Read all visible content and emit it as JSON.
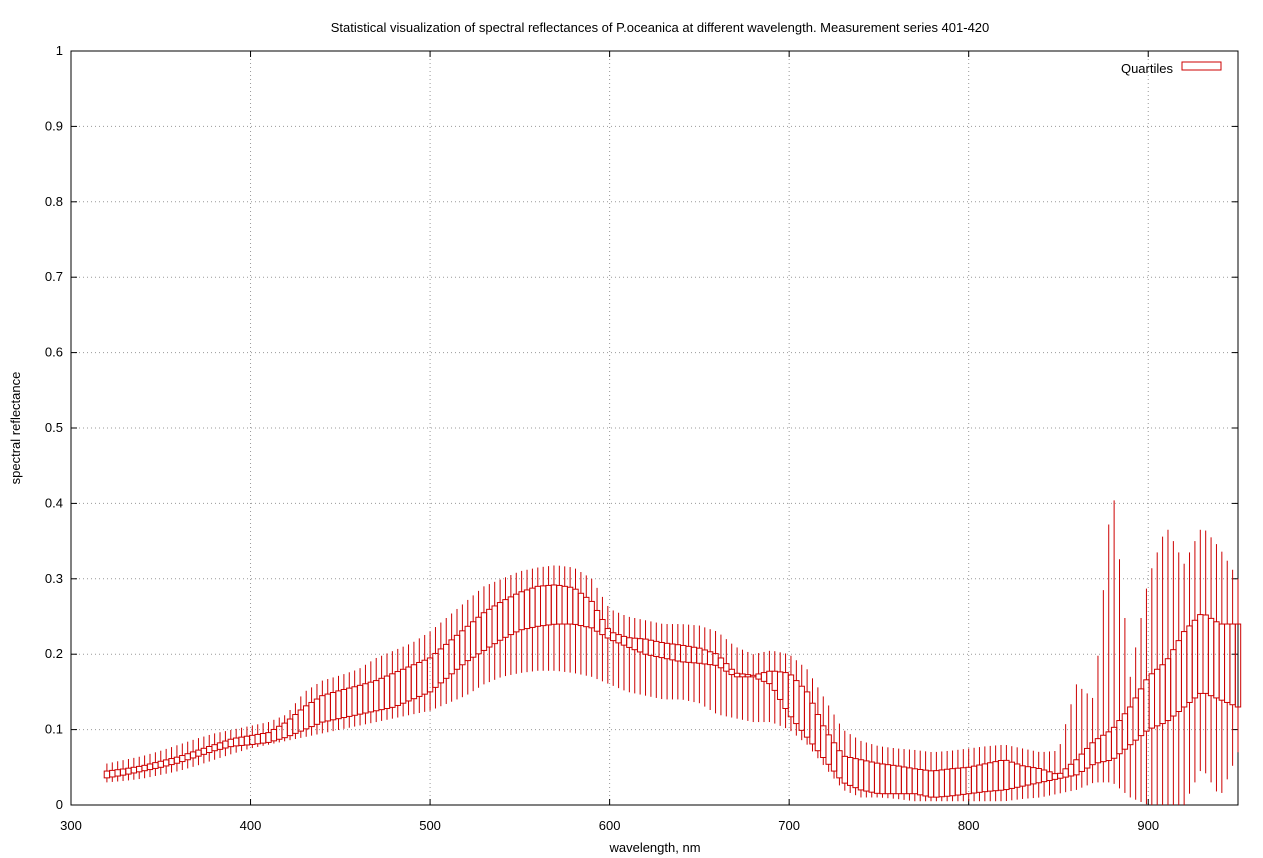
{
  "chart_data": {
    "type": "box",
    "title": "Statistical visualization of spectral reflectances of P.oceanica at different wavelength. Measurement series 401-420",
    "xlabel": "wavelength, nm",
    "ylabel": "spectral reflectance",
    "xlim": [
      300,
      950
    ],
    "ylim": [
      0,
      1
    ],
    "x_ticks": [
      300,
      400,
      500,
      600,
      700,
      800,
      900
    ],
    "y_ticks": [
      0,
      0.1,
      0.2,
      0.3,
      0.4,
      0.5,
      0.6,
      0.7,
      0.8,
      0.9,
      1
    ],
    "y_tick_labels": [
      "0",
      "0.1",
      "0.2",
      "0.3",
      "0.4",
      "0.5",
      "0.6",
      "0.7",
      "0.8",
      "0.9",
      "1"
    ],
    "grid": true,
    "legend": {
      "position": "top-right",
      "entries": [
        {
          "label": "Quartiles"
        }
      ]
    },
    "color": "#cc0000",
    "box_width_nm": 3,
    "series": [
      {
        "name": "Quartiles",
        "x": [
          320,
          330,
          340,
          350,
          360,
          370,
          380,
          390,
          400,
          410,
          420,
          430,
          440,
          450,
          460,
          470,
          480,
          490,
          500,
          510,
          520,
          530,
          540,
          550,
          560,
          570,
          580,
          590,
          600,
          610,
          620,
          630,
          640,
          650,
          660,
          670,
          680,
          690,
          700,
          710,
          720,
          730,
          740,
          750,
          760,
          770,
          780,
          790,
          800,
          810,
          820,
          830,
          840,
          850,
          860,
          870,
          880,
          890,
          900,
          910,
          920,
          930,
          940,
          950
        ],
        "whisker_low": [
          0.03,
          0.032,
          0.035,
          0.04,
          0.045,
          0.052,
          0.06,
          0.068,
          0.075,
          0.08,
          0.085,
          0.09,
          0.095,
          0.1,
          0.105,
          0.11,
          0.115,
          0.12,
          0.125,
          0.135,
          0.145,
          0.16,
          0.17,
          0.175,
          0.178,
          0.178,
          0.175,
          0.17,
          0.16,
          0.15,
          0.145,
          0.14,
          0.14,
          0.135,
          0.12,
          0.115,
          0.11,
          0.11,
          0.1,
          0.08,
          0.05,
          0.02,
          0.01,
          0.01,
          0.008,
          0.005,
          0.005,
          0.005,
          0.005,
          0.005,
          0.005,
          0.008,
          0.01,
          0.015,
          0.02,
          0.03,
          0.03,
          0.01,
          0.0,
          0.0,
          0.0,
          0.05,
          0.01,
          0.07
        ],
        "q1": [
          0.036,
          0.04,
          0.045,
          0.05,
          0.056,
          0.064,
          0.072,
          0.078,
          0.08,
          0.083,
          0.09,
          0.1,
          0.11,
          0.115,
          0.12,
          0.125,
          0.13,
          0.14,
          0.15,
          0.17,
          0.19,
          0.205,
          0.22,
          0.232,
          0.237,
          0.24,
          0.24,
          0.235,
          0.22,
          0.21,
          0.2,
          0.195,
          0.19,
          0.188,
          0.185,
          0.17,
          0.17,
          0.16,
          0.12,
          0.09,
          0.06,
          0.03,
          0.02,
          0.015,
          0.015,
          0.015,
          0.01,
          0.012,
          0.015,
          0.018,
          0.02,
          0.025,
          0.03,
          0.035,
          0.04,
          0.055,
          0.06,
          0.08,
          0.1,
          0.11,
          0.13,
          0.15,
          0.14,
          0.13
        ],
        "q3": [
          0.045,
          0.048,
          0.052,
          0.058,
          0.064,
          0.072,
          0.08,
          0.088,
          0.092,
          0.096,
          0.11,
          0.13,
          0.145,
          0.152,
          0.158,
          0.165,
          0.175,
          0.185,
          0.195,
          0.215,
          0.235,
          0.255,
          0.27,
          0.282,
          0.29,
          0.292,
          0.288,
          0.27,
          0.23,
          0.222,
          0.22,
          0.215,
          0.212,
          0.208,
          0.2,
          0.175,
          0.172,
          0.178,
          0.175,
          0.15,
          0.1,
          0.065,
          0.06,
          0.055,
          0.052,
          0.048,
          0.045,
          0.048,
          0.05,
          0.055,
          0.06,
          0.052,
          0.048,
          0.04,
          0.06,
          0.085,
          0.1,
          0.13,
          0.17,
          0.19,
          0.23,
          0.255,
          0.24,
          0.24
        ],
        "whisker_high": [
          0.055,
          0.06,
          0.065,
          0.072,
          0.08,
          0.088,
          0.095,
          0.1,
          0.105,
          0.11,
          0.12,
          0.15,
          0.165,
          0.172,
          0.18,
          0.195,
          0.205,
          0.215,
          0.23,
          0.25,
          0.27,
          0.29,
          0.3,
          0.31,
          0.315,
          0.318,
          0.315,
          0.3,
          0.26,
          0.25,
          0.245,
          0.24,
          0.24,
          0.238,
          0.23,
          0.21,
          0.2,
          0.205,
          0.2,
          0.18,
          0.14,
          0.1,
          0.085,
          0.078,
          0.075,
          0.073,
          0.07,
          0.072,
          0.075,
          0.078,
          0.08,
          0.075,
          0.07,
          0.072,
          0.16,
          0.14,
          0.43,
          0.17,
          0.3,
          0.37,
          0.32,
          0.37,
          0.34,
          0.3
        ]
      }
    ]
  }
}
